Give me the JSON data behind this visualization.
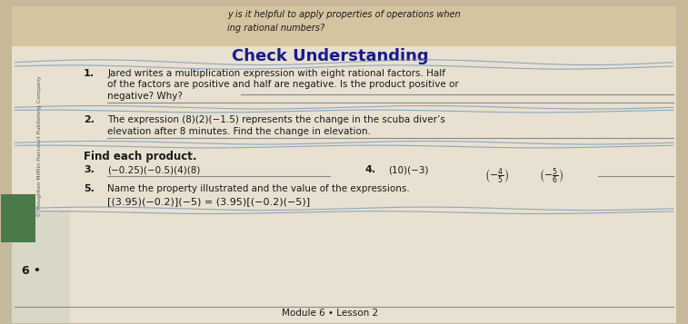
{
  "bg_color": "#c8b89a",
  "paper_color": "#e8e0d0",
  "header_bg": "#d4c4a0",
  "title": "Check Understanding",
  "title_color": "#1a1a8c",
  "top_text": "ing rational numbers?",
  "top_text2": "y is it helpful to apply properties of operations when",
  "q1_num": "1.",
  "q1_text1": "Jared writes a multiplication expression with eight rational factors. Half",
  "q1_text2": "of the factors are positive and half are negative. Is the product positive or",
  "q1_text3": "negative? Why?",
  "q2_num": "2.",
  "q2_text1": "The expression (8)(2)(−1.5) represents the change in the scuba diver’s",
  "q2_text2": "elevation after 8 minutes. Find the change in elevation.",
  "find_label": "Find each product.",
  "q3_num": "3.",
  "q3_text": "(−0.25)(−0.5)(4)(8)",
  "q4_num": "4.",
  "q5_num": "5.",
  "q5_text": "Name the property illustrated and the value of the expressions.",
  "q5_eq": "[(3.95)(−0.2)](−5) = (3.95)[(−0.2)(−5)]",
  "footer": "Module 6 • Lesson 2",
  "page_num": "6 •",
  "sidebar_text": "© Houghton Mifflin Harcourt Publishing Company",
  "line_color": "#6a8fb5",
  "text_color": "#1a1a1a",
  "bold_color": "#000000"
}
